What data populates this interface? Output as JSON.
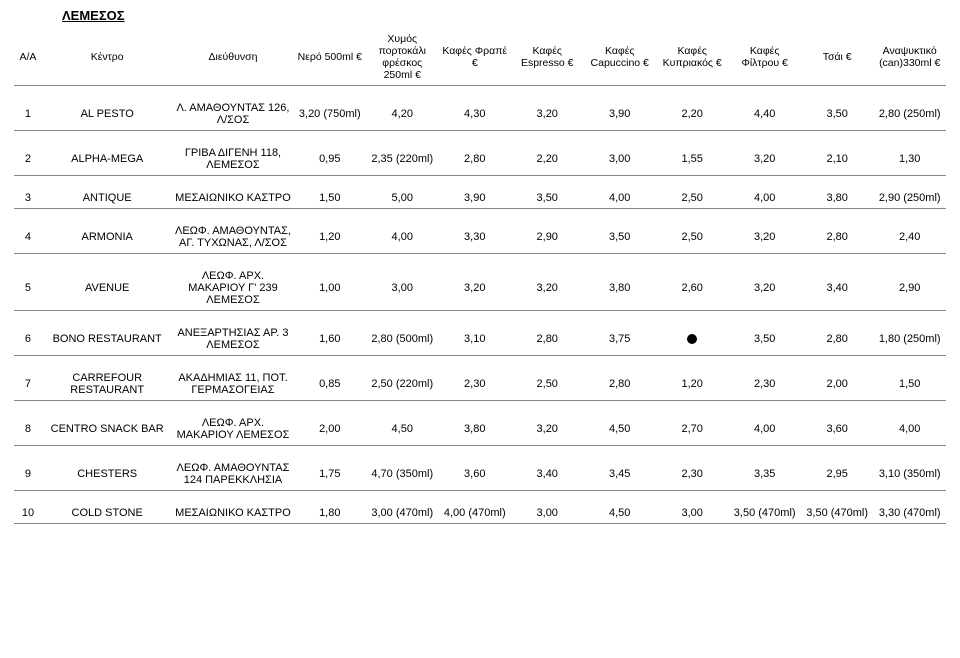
{
  "title": "ΛΕΜΕΣΟΣ",
  "headers": {
    "aa": "A/A",
    "name": "Κέντρο",
    "addr": "Διεύθυνση",
    "c0": "Νερό 500ml\n€",
    "c1": "Χυμός πορτοκάλι φρέσκος 250ml\n€",
    "c2": "Καφές Φραπέ\n€",
    "c3": "Καφές Espresso\n€",
    "c4": "Καφές Capuccino\n€",
    "c5": "Καφές Κυπριακός\n€",
    "c6": "Καφές Φίλτρου\n€",
    "c7": "Τσάι\n€",
    "c8": "Αναψυκτικό (can)330ml\n€"
  },
  "rows": [
    {
      "aa": "1",
      "name": "AL PESTO",
      "addr": "Λ. ΑΜΑΘΟΥΝΤΑΣ 126, Λ/ΣΟΣ",
      "c": [
        "3,20 (750ml)",
        "4,20",
        "4,30",
        "3,20",
        "3,90",
        "2,20",
        "4,40",
        "3,50",
        "2,80 (250ml)"
      ]
    },
    {
      "aa": "2",
      "name": "ALPHA-MEGA",
      "addr": "ΓΡΙΒΑ ΔΙΓΕΝΗ 118, ΛΕΜΕΣΟΣ",
      "c": [
        "0,95",
        "2,35 (220ml)",
        "2,80",
        "2,20",
        "3,00",
        "1,55",
        "3,20",
        "2,10",
        "1,30"
      ]
    },
    {
      "aa": "3",
      "name": "ANTIQUE",
      "addr": "ΜΕΣΑΙΩΝΙΚΟ ΚΑΣΤΡΟ",
      "c": [
        "1,50",
        "5,00",
        "3,90",
        "3,50",
        "4,00",
        "2,50",
        "4,00",
        "3,80",
        "2,90 (250ml)"
      ]
    },
    {
      "aa": "4",
      "name": "ARMONIA",
      "addr": "ΛΕΩΦ. ΑΜΑΘΟΥΝΤΑΣ, ΑΓ. ΤΥΧΩΝΑΣ, Λ/ΣΟΣ",
      "c": [
        "1,20",
        "4,00",
        "3,30",
        "2,90",
        "3,50",
        "2,50",
        "3,20",
        "2,80",
        "2,40"
      ]
    },
    {
      "aa": "5",
      "name": "AVENUE",
      "addr": "ΛΕΩΦ. ΑΡΧ. ΜΑΚΑΡΙΟΥ Γ' 239 ΛΕΜΕΣΟΣ",
      "c": [
        "1,00",
        "3,00",
        "3,20",
        "3,20",
        "3,80",
        "2,60",
        "3,20",
        "3,40",
        "2,90"
      ]
    },
    {
      "aa": "6",
      "name": "BONO RESTAURANT",
      "addr": "ΑΝΕΞΑΡΤΗΣΙΑΣ ΑΡ. 3 ΛΕΜΕΣΟΣ",
      "c": [
        "1,60",
        "2,80 (500ml)",
        "3,10",
        "2,80",
        "3,75",
        "●",
        "3,50",
        "2,80",
        "1,80 (250ml)"
      ]
    },
    {
      "aa": "7",
      "name": "CARREFOUR RESTAURANT",
      "addr": "ΑΚΑΔΗΜΙΑΣ 11, ΠΟΤ. ΓΕΡΜΑΣΟΓΕΙΑΣ",
      "c": [
        "0,85",
        "2,50 (220ml)",
        "2,30",
        "2,50",
        "2,80",
        "1,20",
        "2,30",
        "2,00",
        "1,50"
      ]
    },
    {
      "aa": "8",
      "name": "CENTRO SNACK BAR",
      "addr": "ΛΕΩΦ. ΑΡΧ. ΜΑΚΑΡΙΟΥ ΛΕΜΕΣΟΣ",
      "c": [
        "2,00",
        "4,50",
        "3,80",
        "3,20",
        "4,50",
        "2,70",
        "4,00",
        "3,60",
        "4,00"
      ]
    },
    {
      "aa": "9",
      "name": "CHESTERS",
      "addr": "ΛΕΩΦ. ΑΜΑΘΟΥΝΤΑΣ 124 ΠΑΡΕΚΚΛΗΣΙΑ",
      "c": [
        "1,75",
        "4,70 (350ml)",
        "3,60",
        "3,40",
        "3,45",
        "2,30",
        "3,35",
        "2,95",
        "3,10 (350ml)"
      ]
    },
    {
      "aa": "10",
      "name": "COLD STONE",
      "addr": "ΜΕΣΑΙΩΝΙΚΟ ΚΑΣΤΡΟ",
      "c": [
        "1,80",
        "3,00 (470ml)",
        "4,00 (470ml)",
        "3,00",
        "4,50",
        "3,00",
        "3,50 (470ml)",
        "3,50 (470ml)",
        "3,30 (470ml)"
      ]
    }
  ]
}
